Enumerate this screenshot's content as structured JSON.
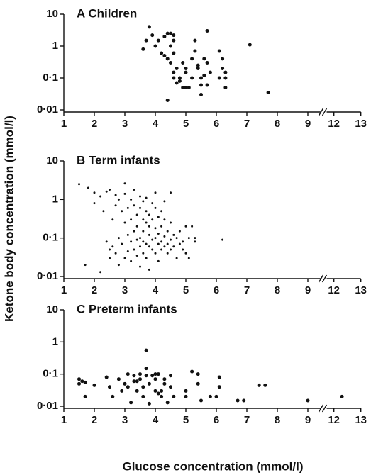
{
  "chart_data": [
    {
      "type": "scatter",
      "title": "A  Children",
      "log_y": true,
      "x_break": [
        9.5,
        11.6
      ],
      "marker_size": 5,
      "color": "#111111",
      "xlim": [
        1,
        13
      ],
      "xticks": [
        1,
        2,
        3,
        4,
        5,
        6,
        7,
        8,
        9,
        12,
        13
      ],
      "ylim": [
        0.01,
        10
      ],
      "yticks": [
        {
          "value": 0.01,
          "label": "0·01"
        },
        {
          "value": 0.1,
          "label": "0·1"
        },
        1,
        10
      ],
      "x": [
        3.6,
        3.8,
        3.7,
        3.9,
        4.0,
        4.1,
        4.2,
        4.3,
        4.4,
        4.4,
        4.3,
        4.5,
        4.5,
        4.6,
        4.6,
        4.6,
        4.4,
        4.6,
        4.7,
        4.6,
        4.7,
        4.8,
        4.8,
        4.9,
        5.0,
        5.1,
        4.9,
        5.0,
        5.2,
        5.3,
        5.3,
        5.2,
        5.4,
        5.5,
        5.5,
        5.5,
        5.6,
        5.7,
        5.7,
        5.8,
        5.6,
        6.1,
        6.2,
        6.2,
        6.3,
        6.3,
        6.3,
        6.1,
        5.4,
        5.7,
        7.1,
        7.7,
        5.0,
        4.5
      ],
      "values": [
        0.8,
        4,
        1.5,
        2.2,
        1,
        1.5,
        0.6,
        2,
        2.5,
        0.4,
        0.5,
        2.5,
        1,
        1.5,
        0.6,
        2.2,
        0.02,
        0.1,
        0.07,
        0.15,
        0.2,
        0.08,
        0.1,
        0.05,
        0.05,
        0.05,
        0.3,
        0.15,
        0.1,
        0.7,
        1.5,
        0.4,
        0.2,
        0.1,
        0.03,
        0.06,
        0.4,
        3,
        0.3,
        0.15,
        0.12,
        0.7,
        0.2,
        0.4,
        0.15,
        0.1,
        0.05,
        0.1,
        0.25,
        0.06,
        1.1,
        0.035,
        0.2,
        0.3
      ]
    },
    {
      "type": "scatter",
      "title": "B  Term infants",
      "log_y": true,
      "x_break": [
        9.5,
        11.6
      ],
      "marker_size": 3,
      "color": "#111111",
      "y_label": "Ketone body concentration (mmol/l)",
      "xlim": [
        1,
        13
      ],
      "xticks": [
        1,
        2,
        3,
        4,
        5,
        6,
        7,
        8,
        9,
        12,
        13
      ],
      "ylim": [
        0.01,
        10
      ],
      "yticks": [
        {
          "value": 0.01,
          "label": "0·01"
        },
        {
          "value": 0.1,
          "label": "0·1"
        },
        1,
        10
      ],
      "x": [
        1.5,
        1.8,
        1.7,
        2.0,
        2.0,
        2.2,
        2.2,
        2.3,
        2.4,
        2.4,
        2.5,
        2.5,
        2.5,
        2.6,
        2.6,
        2.7,
        2.7,
        2.7,
        2.8,
        2.8,
        2.8,
        2.9,
        2.9,
        3.0,
        3.0,
        3.0,
        3.0,
        3.1,
        3.1,
        3.1,
        3.2,
        3.2,
        3.2,
        3.2,
        3.3,
        3.3,
        3.3,
        3.3,
        3.4,
        3.4,
        3.4,
        3.4,
        3.5,
        3.5,
        3.5,
        3.5,
        3.5,
        3.6,
        3.6,
        3.6,
        3.6,
        3.6,
        3.7,
        3.7,
        3.7,
        3.7,
        3.7,
        3.8,
        3.8,
        3.8,
        3.8,
        3.8,
        3.9,
        3.9,
        3.9,
        3.9,
        4.0,
        4.0,
        4.0,
        4.0,
        4.0,
        4.1,
        4.1,
        4.1,
        4.1,
        4.2,
        4.2,
        4.2,
        4.2,
        4.3,
        4.3,
        4.3,
        4.3,
        4.4,
        4.4,
        4.4,
        4.5,
        4.5,
        4.5,
        4.5,
        4.6,
        4.6,
        4.7,
        4.7,
        4.8,
        4.8,
        4.9,
        4.9,
        5.0,
        5.0,
        5.1,
        5.1,
        5.2,
        5.3,
        5.3,
        6.2
      ],
      "values": [
        2.5,
        2.0,
        0.02,
        1.5,
        0.8,
        1.2,
        0.013,
        0.5,
        0.08,
        1.6,
        1.8,
        0.05,
        0.03,
        0.3,
        0.06,
        0.7,
        1.3,
        0.04,
        0.1,
        1.0,
        0.02,
        0.5,
        0.07,
        2.6,
        0.25,
        0.03,
        1.4,
        0.6,
        0.12,
        0.045,
        1.0,
        0.3,
        0.08,
        0.025,
        0.7,
        0.15,
        0.05,
        1.8,
        0.4,
        0.09,
        0.2,
        0.035,
        1.2,
        0.6,
        0.1,
        0.06,
        0.018,
        0.3,
        0.15,
        0.08,
        0.04,
        0.9,
        0.5,
        0.25,
        0.07,
        1.1,
        0.03,
        0.4,
        0.12,
        0.06,
        0.2,
        0.015,
        0.8,
        0.3,
        0.09,
        0.05,
        0.6,
        0.18,
        0.1,
        0.04,
        1.5,
        0.35,
        0.13,
        0.07,
        0.025,
        0.5,
        0.2,
        0.08,
        0.05,
        0.3,
        0.11,
        0.06,
        0.9,
        0.15,
        0.07,
        0.04,
        1.5,
        0.25,
        0.09,
        0.05,
        0.12,
        0.06,
        0.1,
        0.03,
        0.15,
        0.07,
        0.08,
        0.05,
        0.2,
        0.04,
        0.1,
        0.03,
        0.2,
        0.1,
        0.08,
        0.09
      ]
    },
    {
      "type": "scatter",
      "title": "C  Preterm infants",
      "log_y": true,
      "x_break": [
        9.5,
        11.6
      ],
      "marker_size": 5,
      "color": "#111111",
      "x_label": "Glucose concentration (mmol/l)",
      "xlim": [
        1,
        13
      ],
      "xticks": [
        1,
        2,
        3,
        4,
        5,
        6,
        7,
        8,
        9,
        12,
        13
      ],
      "ylim": [
        0.01,
        10
      ],
      "yticks": [
        {
          "value": 0.01,
          "label": "0·01"
        },
        {
          "value": 0.1,
          "label": "0·1"
        },
        1,
        10
      ],
      "x": [
        1.5,
        1.5,
        1.6,
        1.7,
        1.7,
        2.0,
        2.4,
        2.5,
        2.6,
        2.8,
        2.9,
        3.0,
        3.1,
        3.1,
        3.2,
        3.3,
        3.3,
        3.4,
        3.4,
        3.5,
        3.5,
        3.6,
        3.6,
        3.7,
        3.7,
        3.7,
        3.8,
        3.8,
        3.9,
        4.0,
        4.0,
        4.0,
        4.1,
        4.1,
        4.2,
        4.2,
        4.3,
        4.3,
        4.4,
        4.5,
        4.5,
        4.6,
        5.0,
        5.0,
        5.2,
        5.4,
        5.5,
        5.4,
        5.8,
        6.0,
        6.1,
        6.1,
        6.7,
        6.9,
        7.4,
        7.6,
        9.0,
        12.3
      ],
      "values": [
        0.07,
        0.05,
        0.06,
        0.02,
        0.055,
        0.045,
        0.08,
        0.04,
        0.02,
        0.07,
        0.03,
        0.05,
        0.1,
        0.04,
        0.013,
        0.06,
        0.09,
        0.06,
        0.03,
        0.07,
        0.1,
        0.02,
        0.04,
        0.55,
        0.15,
        0.09,
        0.05,
        0.012,
        0.09,
        0.07,
        0.1,
        0.03,
        0.025,
        0.1,
        0.03,
        0.02,
        0.05,
        0.07,
        0.013,
        0.09,
        0.04,
        0.02,
        0.03,
        0.02,
        0.12,
        0.1,
        0.015,
        0.05,
        0.02,
        0.02,
        0.08,
        0.04,
        0.015,
        0.015,
        0.045,
        0.045,
        0.015,
        0.02
      ]
    }
  ]
}
